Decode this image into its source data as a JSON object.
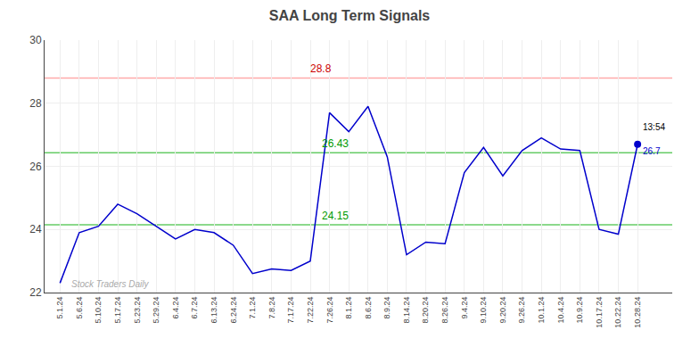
{
  "chart_data": {
    "type": "line",
    "title": "SAA Long Term Signals",
    "categories": [
      "5.1.24",
      "5.6.24",
      "5.10.24",
      "5.17.24",
      "5.23.24",
      "5.29.24",
      "6.4.24",
      "6.7.24",
      "6.13.24",
      "6.24.24",
      "7.1.24",
      "7.8.24",
      "7.17.24",
      "7.22.24",
      "7.26.24",
      "8.1.24",
      "8.6.24",
      "8.9.24",
      "8.14.24",
      "8.20.24",
      "8.26.24",
      "9.4.24",
      "9.10.24",
      "9.20.24",
      "9.26.24",
      "10.1.24",
      "10.4.24",
      "10.9.24",
      "10.17.24",
      "10.22.24",
      "10.28.24"
    ],
    "values": [
      22.3,
      23.9,
      24.1,
      24.8,
      24.5,
      24.1,
      23.7,
      24.0,
      23.9,
      23.5,
      22.6,
      22.75,
      22.7,
      23.0,
      27.7,
      27.1,
      27.9,
      26.3,
      23.2,
      23.6,
      23.55,
      25.8,
      26.6,
      25.7,
      26.5,
      26.9,
      26.55,
      26.5,
      24.0,
      23.85,
      26.7
    ],
    "color": "#0000cc",
    "ylim": [
      22,
      30
    ],
    "yticks": [
      22,
      24,
      26,
      28,
      30
    ],
    "grid": true,
    "reference_lines": [
      {
        "value": 28.8,
        "color": "#ffaaaa",
        "label": "28.8",
        "label_color": "#cc0000"
      },
      {
        "value": 26.43,
        "color": "#66cc66",
        "label": "26.43",
        "label_color": "#009900"
      },
      {
        "value": 24.15,
        "color": "#66cc66",
        "label": "24.15",
        "label_color": "#009900"
      }
    ],
    "annotations": [
      {
        "text": "13:54",
        "color": "#000000"
      },
      {
        "text": "26.7",
        "color": "#0000cc",
        "value": 26.7
      }
    ],
    "watermark": {
      "text": "Stock Traders Daily",
      "color": "#aaaaaa"
    }
  }
}
